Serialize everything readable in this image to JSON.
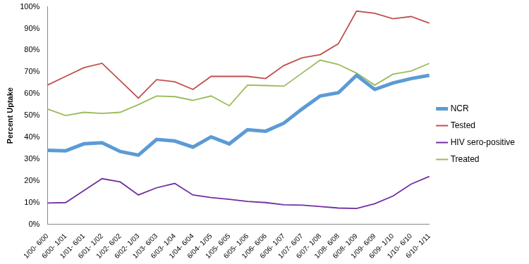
{
  "chart_data": {
    "type": "line",
    "y_label": "Percent Uptake",
    "categories": [
      "1/00- 6/00",
      "6/00- 1/01",
      "1/01- 6/01",
      "6/01- 1/02",
      "1/02- 6/02",
      "6/02- 1/03",
      "1/03- 6/03",
      "6/03- 1/04",
      "1/04- 6/04",
      "6/04- 1/05",
      "1/05- 6/05",
      "6/05- 1/06",
      "1/06- 6/06",
      "6/06- 1/07",
      "1/07- 6/07",
      "6/07- 1/08",
      "1/08- 6/08",
      "6/08- 1/09",
      "1/09- 6/09",
      "6/09- 1/10",
      "1/10- 6/10",
      "6/10- 1/11"
    ],
    "series": [
      {
        "name": "NCR",
        "color": "#5b9bd5",
        "values": [
          34,
          33.8,
          37,
          37.5,
          33.5,
          31.8,
          39,
          38.3,
          35.5,
          40.2,
          37,
          43.5,
          42.8,
          46.5,
          53,
          59,
          60.5,
          68.5,
          62,
          65,
          67,
          68.5
        ]
      },
      {
        "name": "Tested",
        "color": "#c0504d",
        "values": [
          64,
          68,
          72,
          74,
          66,
          58,
          66.5,
          65.5,
          62,
          68,
          68,
          68,
          67,
          73,
          76.5,
          78,
          83,
          98,
          97,
          94.5,
          95.5,
          92.5
        ]
      },
      {
        "name": "HIV sero-positive",
        "color": "#7030a0",
        "values": [
          9.8,
          10,
          15.5,
          21,
          19.5,
          13.5,
          16.8,
          18.8,
          13.5,
          12.3,
          11.5,
          10.5,
          10,
          9,
          8.8,
          8.2,
          7.5,
          7.3,
          9.5,
          13,
          18.5,
          22
        ]
      },
      {
        "name": "Treated",
        "color": "#9bbb59",
        "values": [
          53,
          50,
          51.5,
          51,
          51.5,
          55,
          59,
          58.7,
          57,
          59,
          54.5,
          64,
          63.8,
          63.5,
          69.5,
          75.5,
          73.5,
          69.5,
          64,
          69,
          70.5,
          74
        ]
      }
    ],
    "ylim": [
      0,
      100
    ],
    "yticks": [
      {
        "value": 0,
        "label": "0%"
      },
      {
        "value": 10,
        "label": "10%"
      },
      {
        "value": 20,
        "label": "20%"
      },
      {
        "value": 30,
        "label": "30%"
      },
      {
        "value": 40,
        "label": "40%"
      },
      {
        "value": 50,
        "label": "50%"
      },
      {
        "value": 60,
        "label": "60%"
      },
      {
        "value": 70,
        "label": "70%"
      },
      {
        "value": 80,
        "label": "80%"
      },
      {
        "value": 90,
        "label": "90%"
      },
      {
        "value": 100,
        "label": "100%"
      }
    ],
    "grid": false,
    "legend": "right",
    "marker": "none"
  }
}
